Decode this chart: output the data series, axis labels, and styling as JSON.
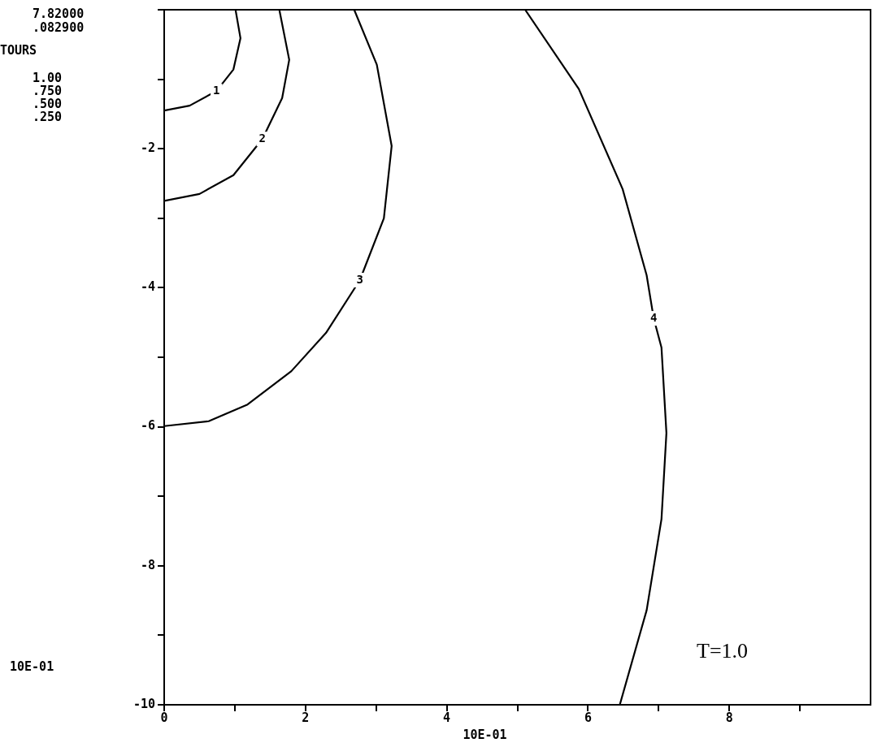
{
  "chart_data": {
    "type": "line",
    "xlabel": "10E-01",
    "xlim": [
      0,
      10
    ],
    "ylim": [
      -10,
      0
    ],
    "xticks": [
      0,
      {
        "value": 1,
        "label": null
      },
      2,
      {
        "value": 3,
        "label": null
      },
      4,
      {
        "value": 5,
        "label": null
      },
      6,
      {
        "value": 7,
        "label": null
      },
      8,
      {
        "value": 9,
        "label": null
      }
    ],
    "yticks": [
      {
        "value": 0,
        "label": null
      },
      {
        "value": -1,
        "label": null
      },
      -2,
      {
        "value": -3,
        "label": null
      },
      -4,
      {
        "value": -5,
        "label": null
      },
      -6,
      {
        "value": -7,
        "label": null
      },
      -8,
      {
        "value": -9,
        "label": null
      },
      -10
    ],
    "grid": false,
    "legend": false,
    "marker": "none",
    "line_style": "solid",
    "series": [
      {
        "color": "#000000",
        "x": [
          1.01,
          1.08,
          0.98,
          0.74,
          0.36,
          0
        ],
        "values": [
          0,
          -0.41,
          -0.86,
          -1.17,
          -1.38,
          -1.45
        ]
      },
      {
        "color": "#000000",
        "x": [
          1.63,
          1.77,
          1.67,
          1.39,
          0.98,
          0.5,
          0
        ],
        "values": [
          0,
          -0.72,
          -1.27,
          -1.86,
          -2.38,
          -2.65,
          -2.75
        ]
      },
      {
        "color": "#000000",
        "x": [
          2.69,
          3.01,
          3.22,
          3.11,
          2.77,
          2.29,
          1.8,
          1.18,
          0.63,
          0
        ],
        "values": [
          0,
          -0.79,
          -1.96,
          -3.0,
          -3.89,
          -4.65,
          -5.2,
          -5.68,
          -5.92,
          -5.99
        ]
      },
      {
        "color": "#000000",
        "x": [
          5.11,
          5.87,
          6.49,
          6.83,
          6.93,
          7.04,
          7.11,
          7.04,
          6.83,
          6.45
        ],
        "values": [
          0,
          -1.14,
          -2.58,
          -3.82,
          -4.44,
          -4.86,
          -6.09,
          -7.33,
          -8.64,
          -10
        ]
      }
    ],
    "annotations": [
      "7.82000",
      ".082900",
      "TOURS",
      "1.00",
      ".750",
      ".500",
      ".250",
      "T=1.0",
      "10E-01",
      {
        "text": "1",
        "x": 0.74,
        "y": -1.17
      },
      {
        "text": "2",
        "x": 1.39,
        "y": -1.86
      },
      {
        "text": "3",
        "x": 2.77,
        "y": -3.89
      },
      {
        "text": "4",
        "x": 6.93,
        "y": -4.44
      }
    ]
  }
}
